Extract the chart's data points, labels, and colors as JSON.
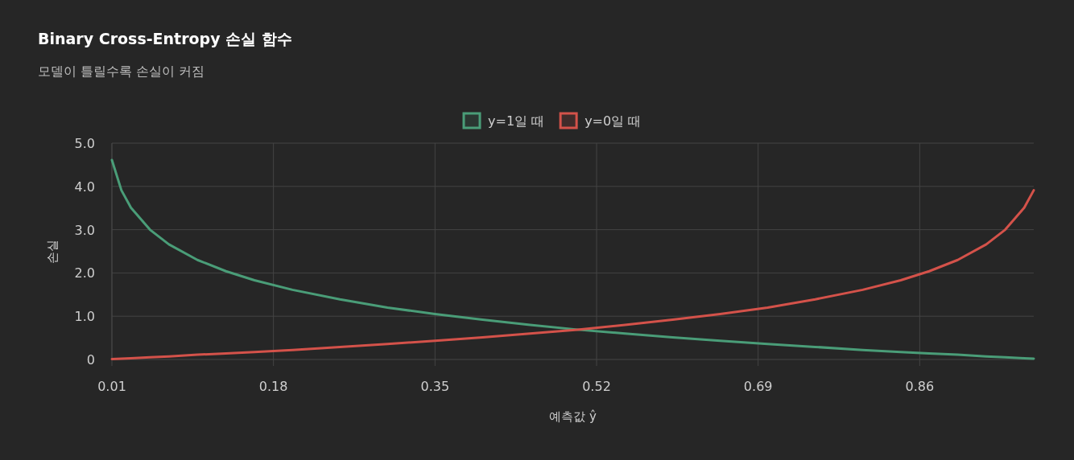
{
  "chart_data": {
    "type": "line",
    "title": "Binary Cross-Entropy 손실 함수",
    "subtitle": "모델이 틀릴수록 손실이 커짐",
    "xlabel": "예측값 ŷ",
    "ylabel": "손실",
    "x": [
      0.01,
      0.02,
      0.03,
      0.05,
      0.07,
      0.1,
      0.13,
      0.16,
      0.2,
      0.25,
      0.3,
      0.35,
      0.4,
      0.45,
      0.5,
      0.55,
      0.6,
      0.65,
      0.7,
      0.75,
      0.8,
      0.84,
      0.87,
      0.9,
      0.93,
      0.95,
      0.97,
      0.98
    ],
    "series": [
      {
        "name": "y=1일 때",
        "color": "#4a9d78",
        "values": [
          4.61,
          3.91,
          3.51,
          3.0,
          2.66,
          2.3,
          2.04,
          1.83,
          1.61,
          1.39,
          1.2,
          1.05,
          0.92,
          0.8,
          0.69,
          0.6,
          0.51,
          0.43,
          0.36,
          0.29,
          0.22,
          0.17,
          0.14,
          0.11,
          0.07,
          0.05,
          0.03,
          0.02
        ]
      },
      {
        "name": "y=0일 때",
        "color": "#d4524a",
        "values": [
          0.01,
          0.02,
          0.03,
          0.05,
          0.07,
          0.11,
          0.14,
          0.17,
          0.22,
          0.29,
          0.36,
          0.43,
          0.51,
          0.6,
          0.69,
          0.8,
          0.92,
          1.05,
          1.2,
          1.39,
          1.61,
          1.83,
          2.04,
          2.3,
          2.66,
          3.0,
          3.51,
          3.91
        ]
      }
    ],
    "xlim": [
      0.01,
      0.98
    ],
    "xticks": [
      0.01,
      0.18,
      0.35,
      0.52,
      0.69,
      0.86
    ],
    "ylim": [
      0,
      5
    ],
    "yticks": [
      0,
      {
        "value": 1,
        "label": "1.0"
      },
      {
        "value": 2,
        "label": "2.0"
      },
      {
        "value": 3,
        "label": "3.0"
      },
      {
        "value": 4,
        "label": "4.0"
      },
      {
        "value": 5,
        "label": "5.0"
      }
    ],
    "grid": true,
    "legend": "top",
    "marker": "none",
    "line_style": "solid"
  }
}
